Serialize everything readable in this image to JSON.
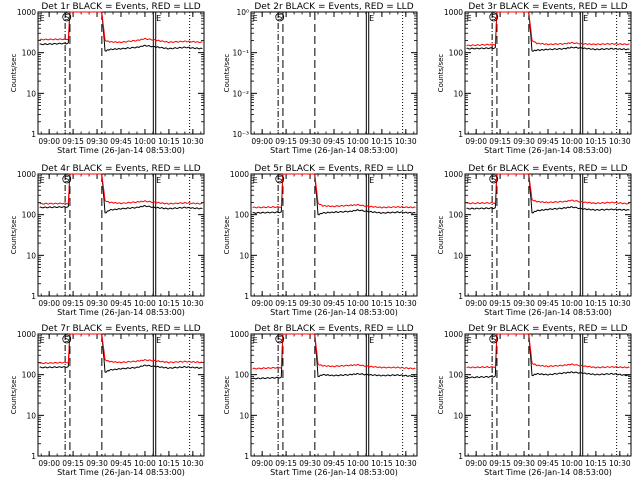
{
  "figure": {
    "x_axis_label": "Start Time (26-Jan-14 08:53:00)",
    "y_axis_label": "Counts/sec",
    "x_ticks": [
      "09:00",
      "09:15",
      "09:30",
      "09:45",
      "10:00",
      "10:15",
      "10:30"
    ],
    "y_ticks_log": [
      "1",
      "10",
      "100",
      "1000"
    ],
    "y_ticks_2r": [
      "10⁻³",
      "10⁻²",
      "10⁻¹",
      "10⁰"
    ],
    "marker_E": "E",
    "marker_S": "S",
    "colors": {
      "events": "#000000",
      "lld": "#ff0000",
      "background": "#ffffff"
    }
  },
  "chart_data": [
    {
      "type": "line",
      "panel": "1r",
      "title": "Det 1r BLACK = Events, RED = LLD",
      "xlabel": "Start Time (26-Jan-14 08:53:00)",
      "ylabel": "Counts/sec",
      "xlim": [
        "08:53",
        "10:37"
      ],
      "ylim": [
        1,
        1000
      ],
      "y_scale": "log",
      "markers": {
        "S": "09:11",
        "E": [
          "08:54",
          "10:07"
        ]
      },
      "vlines": {
        "dash_dot": [
          "09:10",
          "10:28"
        ],
        "dashed": [
          "09:13",
          "09:33"
        ],
        "solid": [
          "10:06"
        ]
      },
      "series": [
        {
          "name": "BLACK = Events",
          "x": [
            "08:54",
            "09:12",
            "09:13",
            "09:33",
            "09:35",
            "09:38",
            "09:45",
            "09:55",
            "10:00",
            "10:06",
            "10:15",
            "10:25",
            "10:36"
          ],
          "y": [
            160,
            170,
            1000,
            1000,
            110,
            120,
            125,
            135,
            150,
            140,
            125,
            135,
            125
          ]
        },
        {
          "name": "RED = LLD",
          "x": [
            "08:54",
            "09:12",
            "09:13",
            "09:33",
            "09:35",
            "09:38",
            "09:45",
            "09:55",
            "10:00",
            "10:06",
            "10:15",
            "10:25",
            "10:36"
          ],
          "y": [
            210,
            215,
            1000,
            1000,
            200,
            185,
            180,
            200,
            220,
            205,
            180,
            190,
            180
          ]
        }
      ]
    },
    {
      "type": "line",
      "panel": "2r",
      "title": "Det 2r BLACK = Events, RED = LLD",
      "xlabel": "Start Time (26-Jan-14 08:53:00)",
      "ylabel": "Counts/sec",
      "xlim": [
        "08:53",
        "10:37"
      ],
      "ylim": [
        0.001,
        1
      ],
      "y_scale": "log",
      "markers": {
        "S": "09:11",
        "E": [
          "08:54",
          "10:07"
        ]
      },
      "vlines": {
        "dash_dot": [
          "09:10",
          "10:28"
        ],
        "dashed": [
          "09:13",
          "09:33"
        ],
        "solid": [
          "10:06"
        ]
      },
      "series": [
        {
          "name": "BLACK = Events",
          "x": [],
          "y": []
        },
        {
          "name": "RED = LLD",
          "x": [],
          "y": []
        }
      ]
    },
    {
      "type": "line",
      "panel": "3r",
      "title": "Det 3r BLACK = Events, RED = LLD",
      "xlabel": "Start Time (26-Jan-14 08:53:00)",
      "ylabel": "Counts/sec",
      "xlim": [
        "08:53",
        "10:37"
      ],
      "ylim": [
        1,
        1000
      ],
      "y_scale": "log",
      "markers": {
        "S": "09:11",
        "E": [
          "08:54",
          "10:07"
        ]
      },
      "vlines": {
        "dash_dot": [
          "09:10",
          "10:28"
        ],
        "dashed": [
          "09:13",
          "09:33"
        ],
        "solid": [
          "10:06"
        ]
      },
      "series": [
        {
          "name": "BLACK = Events",
          "x": [
            "08:54",
            "09:12",
            "09:13",
            "09:33",
            "09:35",
            "09:38",
            "09:45",
            "09:55",
            "10:00",
            "10:06",
            "10:15",
            "10:25",
            "10:36"
          ],
          "y": [
            125,
            130,
            1000,
            1000,
            110,
            115,
            120,
            125,
            135,
            130,
            120,
            125,
            120
          ]
        },
        {
          "name": "RED = LLD",
          "x": [
            "08:54",
            "09:12",
            "09:13",
            "09:33",
            "09:35",
            "09:38",
            "09:45",
            "09:55",
            "10:00",
            "10:06",
            "10:15",
            "10:25",
            "10:36"
          ],
          "y": [
            150,
            160,
            1000,
            1000,
            200,
            170,
            160,
            165,
            175,
            165,
            160,
            165,
            160
          ]
        }
      ]
    },
    {
      "type": "line",
      "panel": "4r",
      "title": "Det 4r BLACK = Events, RED = LLD",
      "xlabel": "Start Time (26-Jan-14 08:53:00)",
      "ylabel": "Counts/sec",
      "xlim": [
        "08:53",
        "10:37"
      ],
      "ylim": [
        1,
        1000
      ],
      "y_scale": "log",
      "markers": {
        "S": "09:11",
        "E": [
          "08:54",
          "10:07"
        ]
      },
      "vlines": {
        "dash_dot": [
          "09:10",
          "10:28"
        ],
        "dashed": [
          "09:13",
          "09:33"
        ],
        "solid": [
          "10:06"
        ]
      },
      "series": [
        {
          "name": "BLACK = Events",
          "x": [
            "08:54",
            "09:12",
            "09:13",
            "09:33",
            "09:35",
            "09:38",
            "09:45",
            "09:55",
            "10:00",
            "10:06",
            "10:15",
            "10:25",
            "10:36"
          ],
          "y": [
            150,
            155,
            1000,
            1000,
            110,
            130,
            140,
            150,
            165,
            150,
            140,
            150,
            140
          ]
        },
        {
          "name": "RED = LLD",
          "x": [
            "08:54",
            "09:12",
            "09:13",
            "09:33",
            "09:35",
            "09:38",
            "09:45",
            "09:55",
            "10:00",
            "10:06",
            "10:15",
            "10:25",
            "10:36"
          ],
          "y": [
            185,
            190,
            1000,
            1000,
            220,
            200,
            190,
            205,
            215,
            200,
            185,
            195,
            185
          ]
        }
      ]
    },
    {
      "type": "line",
      "panel": "5r",
      "title": "Det 5r BLACK = Events, RED = LLD",
      "xlabel": "Start Time (26-Jan-14 08:53:00)",
      "ylabel": "Counts/sec",
      "xlim": [
        "08:53",
        "10:37"
      ],
      "ylim": [
        1,
        1000
      ],
      "y_scale": "log",
      "markers": {
        "S": "09:11",
        "E": [
          "08:54",
          "10:07"
        ]
      },
      "vlines": {
        "dash_dot": [
          "09:10",
          "10:28"
        ],
        "dashed": [
          "09:13",
          "09:33"
        ],
        "solid": [
          "10:06"
        ]
      },
      "series": [
        {
          "name": "BLACK = Events",
          "x": [
            "08:54",
            "09:12",
            "09:13",
            "09:33",
            "09:35",
            "09:38",
            "09:45",
            "09:55",
            "10:00",
            "10:06",
            "10:15",
            "10:25",
            "10:36"
          ],
          "y": [
            110,
            115,
            1000,
            1000,
            100,
            110,
            115,
            120,
            130,
            120,
            110,
            115,
            110
          ]
        },
        {
          "name": "RED = LLD",
          "x": [
            "08:54",
            "09:12",
            "09:13",
            "09:33",
            "09:35",
            "09:38",
            "09:45",
            "09:55",
            "10:00",
            "10:06",
            "10:15",
            "10:25",
            "10:36"
          ],
          "y": [
            150,
            155,
            1000,
            1000,
            190,
            165,
            160,
            170,
            175,
            160,
            150,
            155,
            150
          ]
        }
      ]
    },
    {
      "type": "line",
      "panel": "6r",
      "title": "Det 6r BLACK = Events, RED = LLD",
      "xlabel": "Start Time (26-Jan-14 08:53:00)",
      "ylabel": "Counts/sec",
      "xlim": [
        "08:53",
        "10:37"
      ],
      "ylim": [
        1,
        1000
      ],
      "y_scale": "log",
      "markers": {
        "S": "09:11",
        "E": [
          "08:54",
          "10:07"
        ]
      },
      "vlines": {
        "dash_dot": [
          "09:10",
          "10:28"
        ],
        "dashed": [
          "09:13",
          "09:33"
        ],
        "solid": [
          "10:06"
        ]
      },
      "series": [
        {
          "name": "BLACK = Events",
          "x": [
            "08:54",
            "09:12",
            "09:13",
            "09:33",
            "09:35",
            "09:38",
            "09:45",
            "09:55",
            "10:00",
            "10:06",
            "10:15",
            "10:25",
            "10:36"
          ],
          "y": [
            140,
            145,
            1000,
            1000,
            110,
            125,
            135,
            145,
            155,
            140,
            130,
            135,
            130
          ]
        },
        {
          "name": "RED = LLD",
          "x": [
            "08:54",
            "09:12",
            "09:13",
            "09:33",
            "09:35",
            "09:38",
            "09:45",
            "09:55",
            "10:00",
            "10:06",
            "10:15",
            "10:25",
            "10:36"
          ],
          "y": [
            190,
            195,
            1000,
            1000,
            230,
            210,
            200,
            210,
            225,
            205,
            190,
            200,
            185
          ]
        }
      ]
    },
    {
      "type": "line",
      "panel": "7r",
      "title": "Det 7r BLACK = Events, RED = LLD",
      "xlabel": "Start Time (26-Jan-14 08:53:00)",
      "ylabel": "Counts/sec",
      "xlim": [
        "08:53",
        "10:37"
      ],
      "ylim": [
        1,
        1000
      ],
      "y_scale": "log",
      "markers": {
        "S": "09:11",
        "E": [
          "08:54",
          "10:07"
        ]
      },
      "vlines": {
        "dash_dot": [
          "09:10",
          "10:28"
        ],
        "dashed": [
          "09:13",
          "09:33"
        ],
        "solid": [
          "10:06"
        ]
      },
      "series": [
        {
          "name": "BLACK = Events",
          "x": [
            "08:54",
            "09:12",
            "09:13",
            "09:33",
            "09:35",
            "09:38",
            "09:45",
            "09:55",
            "10:00",
            "10:06",
            "10:15",
            "10:25",
            "10:36"
          ],
          "y": [
            150,
            155,
            1000,
            1000,
            115,
            130,
            140,
            150,
            170,
            160,
            145,
            155,
            145
          ]
        },
        {
          "name": "RED = LLD",
          "x": [
            "08:54",
            "09:12",
            "09:13",
            "09:33",
            "09:35",
            "09:38",
            "09:45",
            "09:55",
            "10:00",
            "10:06",
            "10:15",
            "10:25",
            "10:36"
          ],
          "y": [
            190,
            200,
            1000,
            1000,
            230,
            210,
            200,
            215,
            230,
            220,
            200,
            210,
            200
          ]
        }
      ]
    },
    {
      "type": "line",
      "panel": "8r",
      "title": "Det 8r BLACK = Events, RED = LLD",
      "xlabel": "Start Time (26-Jan-14 08:53:00)",
      "ylabel": "Counts/sec",
      "xlim": [
        "08:53",
        "10:37"
      ],
      "ylim": [
        1,
        1000
      ],
      "y_scale": "log",
      "markers": {
        "S": "09:11",
        "E": [
          "08:54",
          "10:07"
        ]
      },
      "vlines": {
        "dash_dot": [
          "09:10",
          "10:28"
        ],
        "dashed": [
          "09:13",
          "09:33"
        ],
        "solid": [
          "10:06"
        ]
      },
      "series": [
        {
          "name": "BLACK = Events",
          "x": [
            "08:54",
            "09:12",
            "09:13",
            "09:33",
            "09:35",
            "09:38",
            "09:45",
            "09:55",
            "10:00",
            "10:06",
            "10:15",
            "10:25",
            "10:36"
          ],
          "y": [
            80,
            85,
            1000,
            1000,
            90,
            100,
            95,
            100,
            105,
            100,
            95,
            98,
            90
          ]
        },
        {
          "name": "RED = LLD",
          "x": [
            "08:54",
            "09:12",
            "09:13",
            "09:33",
            "09:35",
            "09:38",
            "09:45",
            "09:55",
            "10:00",
            "10:06",
            "10:15",
            "10:25",
            "10:36"
          ],
          "y": [
            140,
            150,
            1000,
            1000,
            180,
            165,
            160,
            170,
            175,
            160,
            150,
            150,
            140
          ]
        }
      ]
    },
    {
      "type": "line",
      "panel": "9r",
      "title": "Det 9r BLACK = Events, RED = LLD",
      "xlabel": "Start Time (26-Jan-14 08:53:00)",
      "ylabel": "Counts/sec",
      "xlim": [
        "08:53",
        "10:37"
      ],
      "ylim": [
        1,
        1000
      ],
      "y_scale": "log",
      "markers": {
        "S": "09:11",
        "E": [
          "08:54",
          "10:07"
        ]
      },
      "vlines": {
        "dash_dot": [
          "09:10",
          "10:28"
        ],
        "dashed": [
          "09:13",
          "09:33"
        ],
        "solid": [
          "10:06"
        ]
      },
      "series": [
        {
          "name": "BLACK = Events",
          "x": [
            "08:54",
            "09:12",
            "09:13",
            "09:33",
            "09:35",
            "09:38",
            "09:45",
            "09:55",
            "10:00",
            "10:06",
            "10:15",
            "10:25",
            "10:36"
          ],
          "y": [
            85,
            90,
            1000,
            1000,
            95,
            105,
            100,
            110,
            115,
            110,
            100,
            105,
            95
          ]
        },
        {
          "name": "RED = LLD",
          "x": [
            "08:54",
            "09:12",
            "09:13",
            "09:33",
            "09:35",
            "09:38",
            "09:45",
            "09:55",
            "10:00",
            "10:06",
            "10:15",
            "10:25",
            "10:36"
          ],
          "y": [
            150,
            155,
            1000,
            1000,
            190,
            170,
            160,
            170,
            180,
            165,
            150,
            155,
            150
          ]
        }
      ]
    }
  ]
}
